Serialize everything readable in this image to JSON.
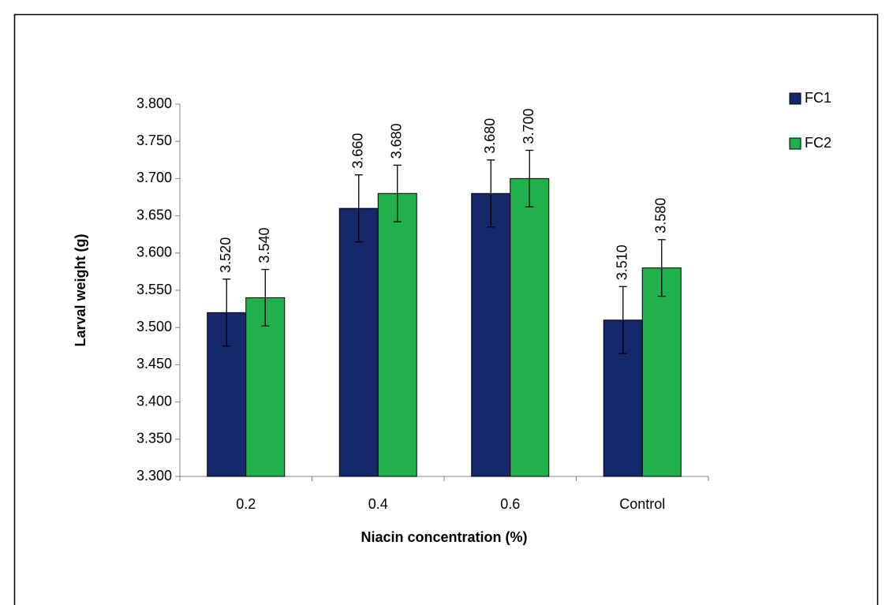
{
  "chart_data": {
    "type": "bar",
    "x_label": "Niacin concentration (%)",
    "y_label": "Larval weight (g)",
    "categories": [
      "0.2",
      "0.4",
      "0.6",
      "Control"
    ],
    "series": [
      {
        "name": "FC1",
        "color": "#14286b",
        "values": [
          3.52,
          3.66,
          3.68,
          3.51
        ],
        "value_labels": [
          "3.520",
          "3.660",
          "3.680",
          "3.510"
        ],
        "errors": [
          0.045,
          0.045,
          0.045,
          0.045
        ]
      },
      {
        "name": "FC2",
        "color": "#21b14c",
        "values": [
          3.54,
          3.68,
          3.7,
          3.58
        ],
        "value_labels": [
          "3.540",
          "3.680",
          "3.700",
          "3.580"
        ],
        "errors": [
          0.038,
          0.038,
          0.038,
          0.038
        ]
      }
    ],
    "ylim": [
      3.3,
      3.8
    ],
    "yticks": [
      {
        "value": 3.3,
        "label": "3.300"
      },
      {
        "value": 3.35,
        "label": "3.350"
      },
      {
        "value": 3.4,
        "label": "3.400"
      },
      {
        "value": 3.45,
        "label": "3.450"
      },
      {
        "value": 3.5,
        "label": "3.500"
      },
      {
        "value": 3.55,
        "label": "3.550"
      },
      {
        "value": 3.6,
        "label": "3.600"
      },
      {
        "value": 3.65,
        "label": "3.650"
      },
      {
        "value": 3.7,
        "label": "3.700"
      },
      {
        "value": 3.75,
        "label": "3.750"
      },
      {
        "value": 3.8,
        "label": "3.800"
      }
    ],
    "grid": false,
    "legend": "right"
  }
}
